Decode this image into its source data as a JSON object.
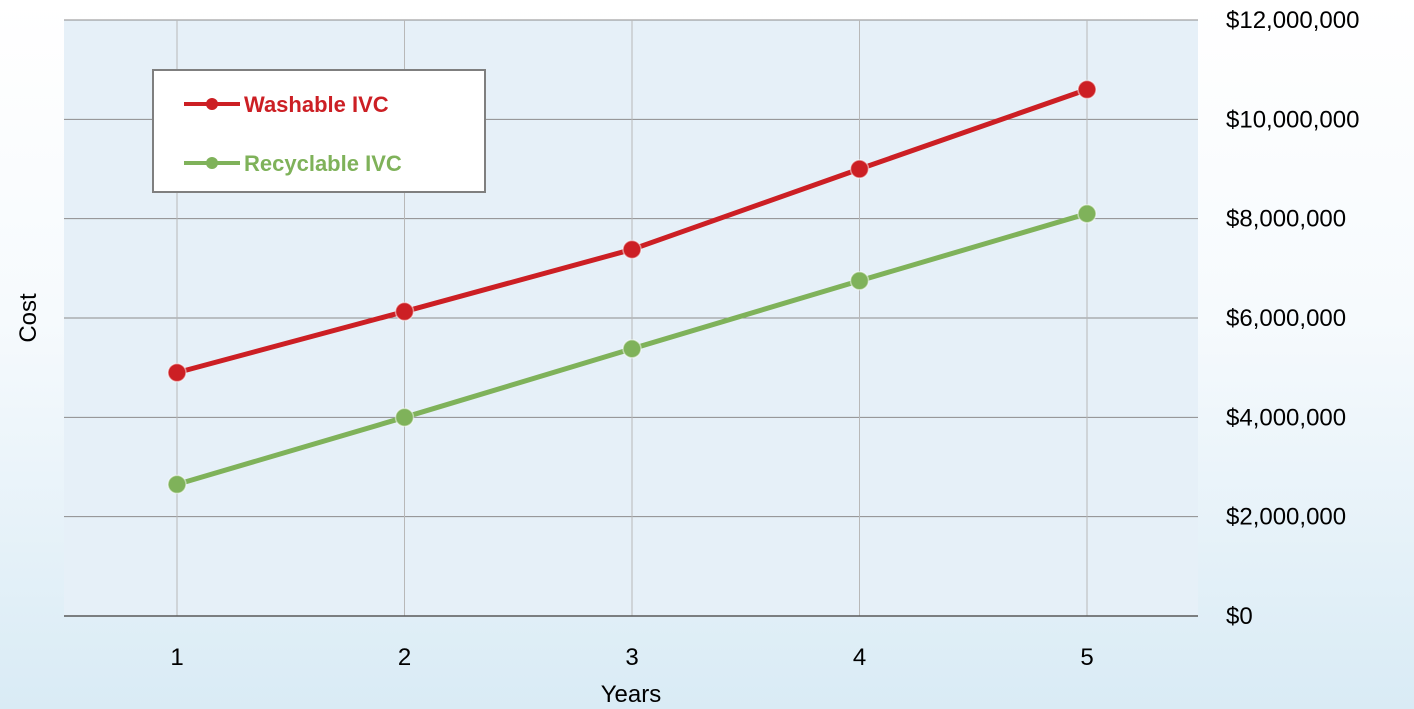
{
  "chart_data": {
    "type": "line",
    "categories": [
      "1",
      "2",
      "3",
      "4",
      "5"
    ],
    "series": [
      {
        "name": "Washable IVC",
        "color": "#cc1f24",
        "values": [
          4900000,
          6130000,
          7380000,
          9000000,
          10600000
        ]
      },
      {
        "name": "Recyclable IVC",
        "color": "#7fb25a",
        "values": [
          2650000,
          4000000,
          5380000,
          6750000,
          8100000
        ]
      }
    ],
    "title": "",
    "xlabel": "Years",
    "ylabel": "Cost",
    "ylim": [
      0,
      12000000
    ],
    "ytick_values": [
      0,
      2000000,
      4000000,
      6000000,
      8000000,
      10000000,
      12000000
    ],
    "ytick_labels": [
      "$0",
      "$2,000,000",
      "$4,000,000",
      "$6,000,000",
      "$8,000,000",
      "$10,000,000",
      "$12,000,000"
    ],
    "grid": true,
    "y_axis_side": "right",
    "legend_placement": "top-left",
    "plot_background": "#e6f0f8"
  }
}
